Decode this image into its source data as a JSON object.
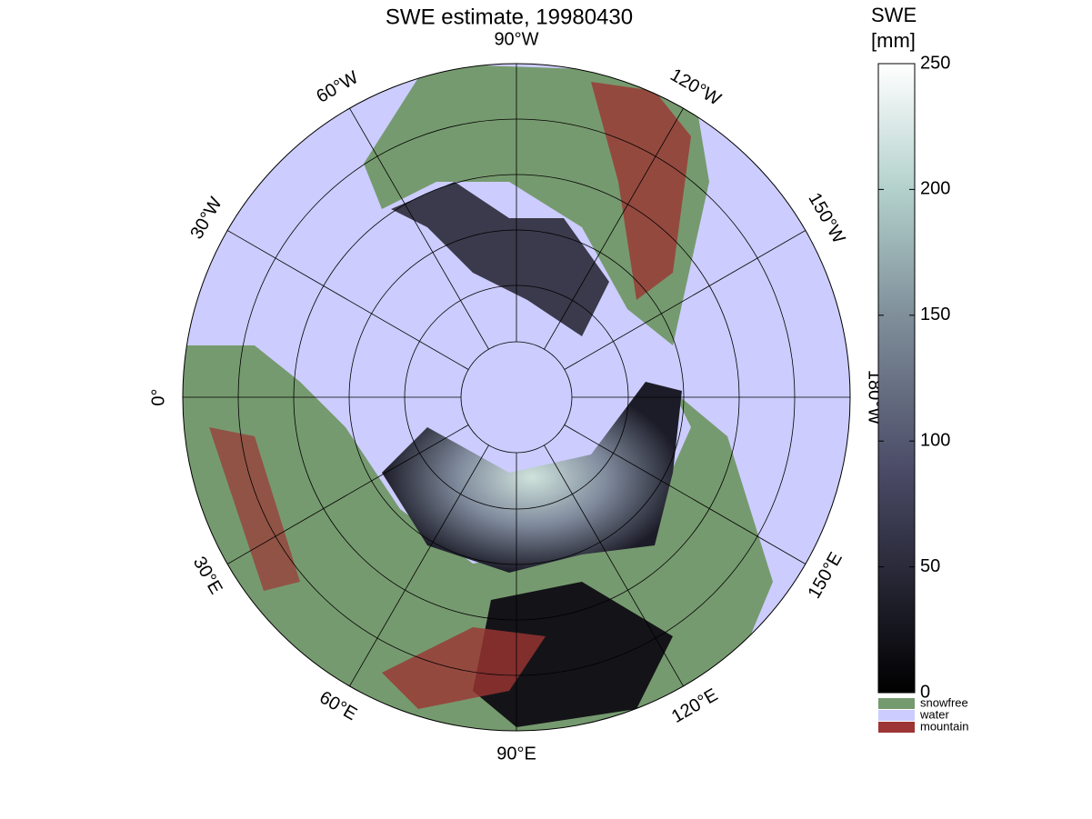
{
  "map": {
    "title": "SWE estimate, 19980430",
    "longitude_labels": [
      "0°",
      "30°E",
      "60°E",
      "90°E",
      "120°E",
      "150°E",
      "180°W",
      "150°W",
      "120°W",
      "90°W",
      "60°W",
      "30°W"
    ],
    "colorbar": {
      "title": [
        "SWE",
        "[mm]"
      ],
      "lim": [
        0,
        250
      ],
      "ticks": [
        0,
        50,
        100,
        150,
        200,
        250
      ]
    },
    "legend": [
      {
        "name": "snowfree",
        "color": "#769a6f"
      },
      {
        "name": "water",
        "color": "#ccccff"
      },
      {
        "name": "mountain",
        "color": "#9c3533"
      }
    ]
  }
}
